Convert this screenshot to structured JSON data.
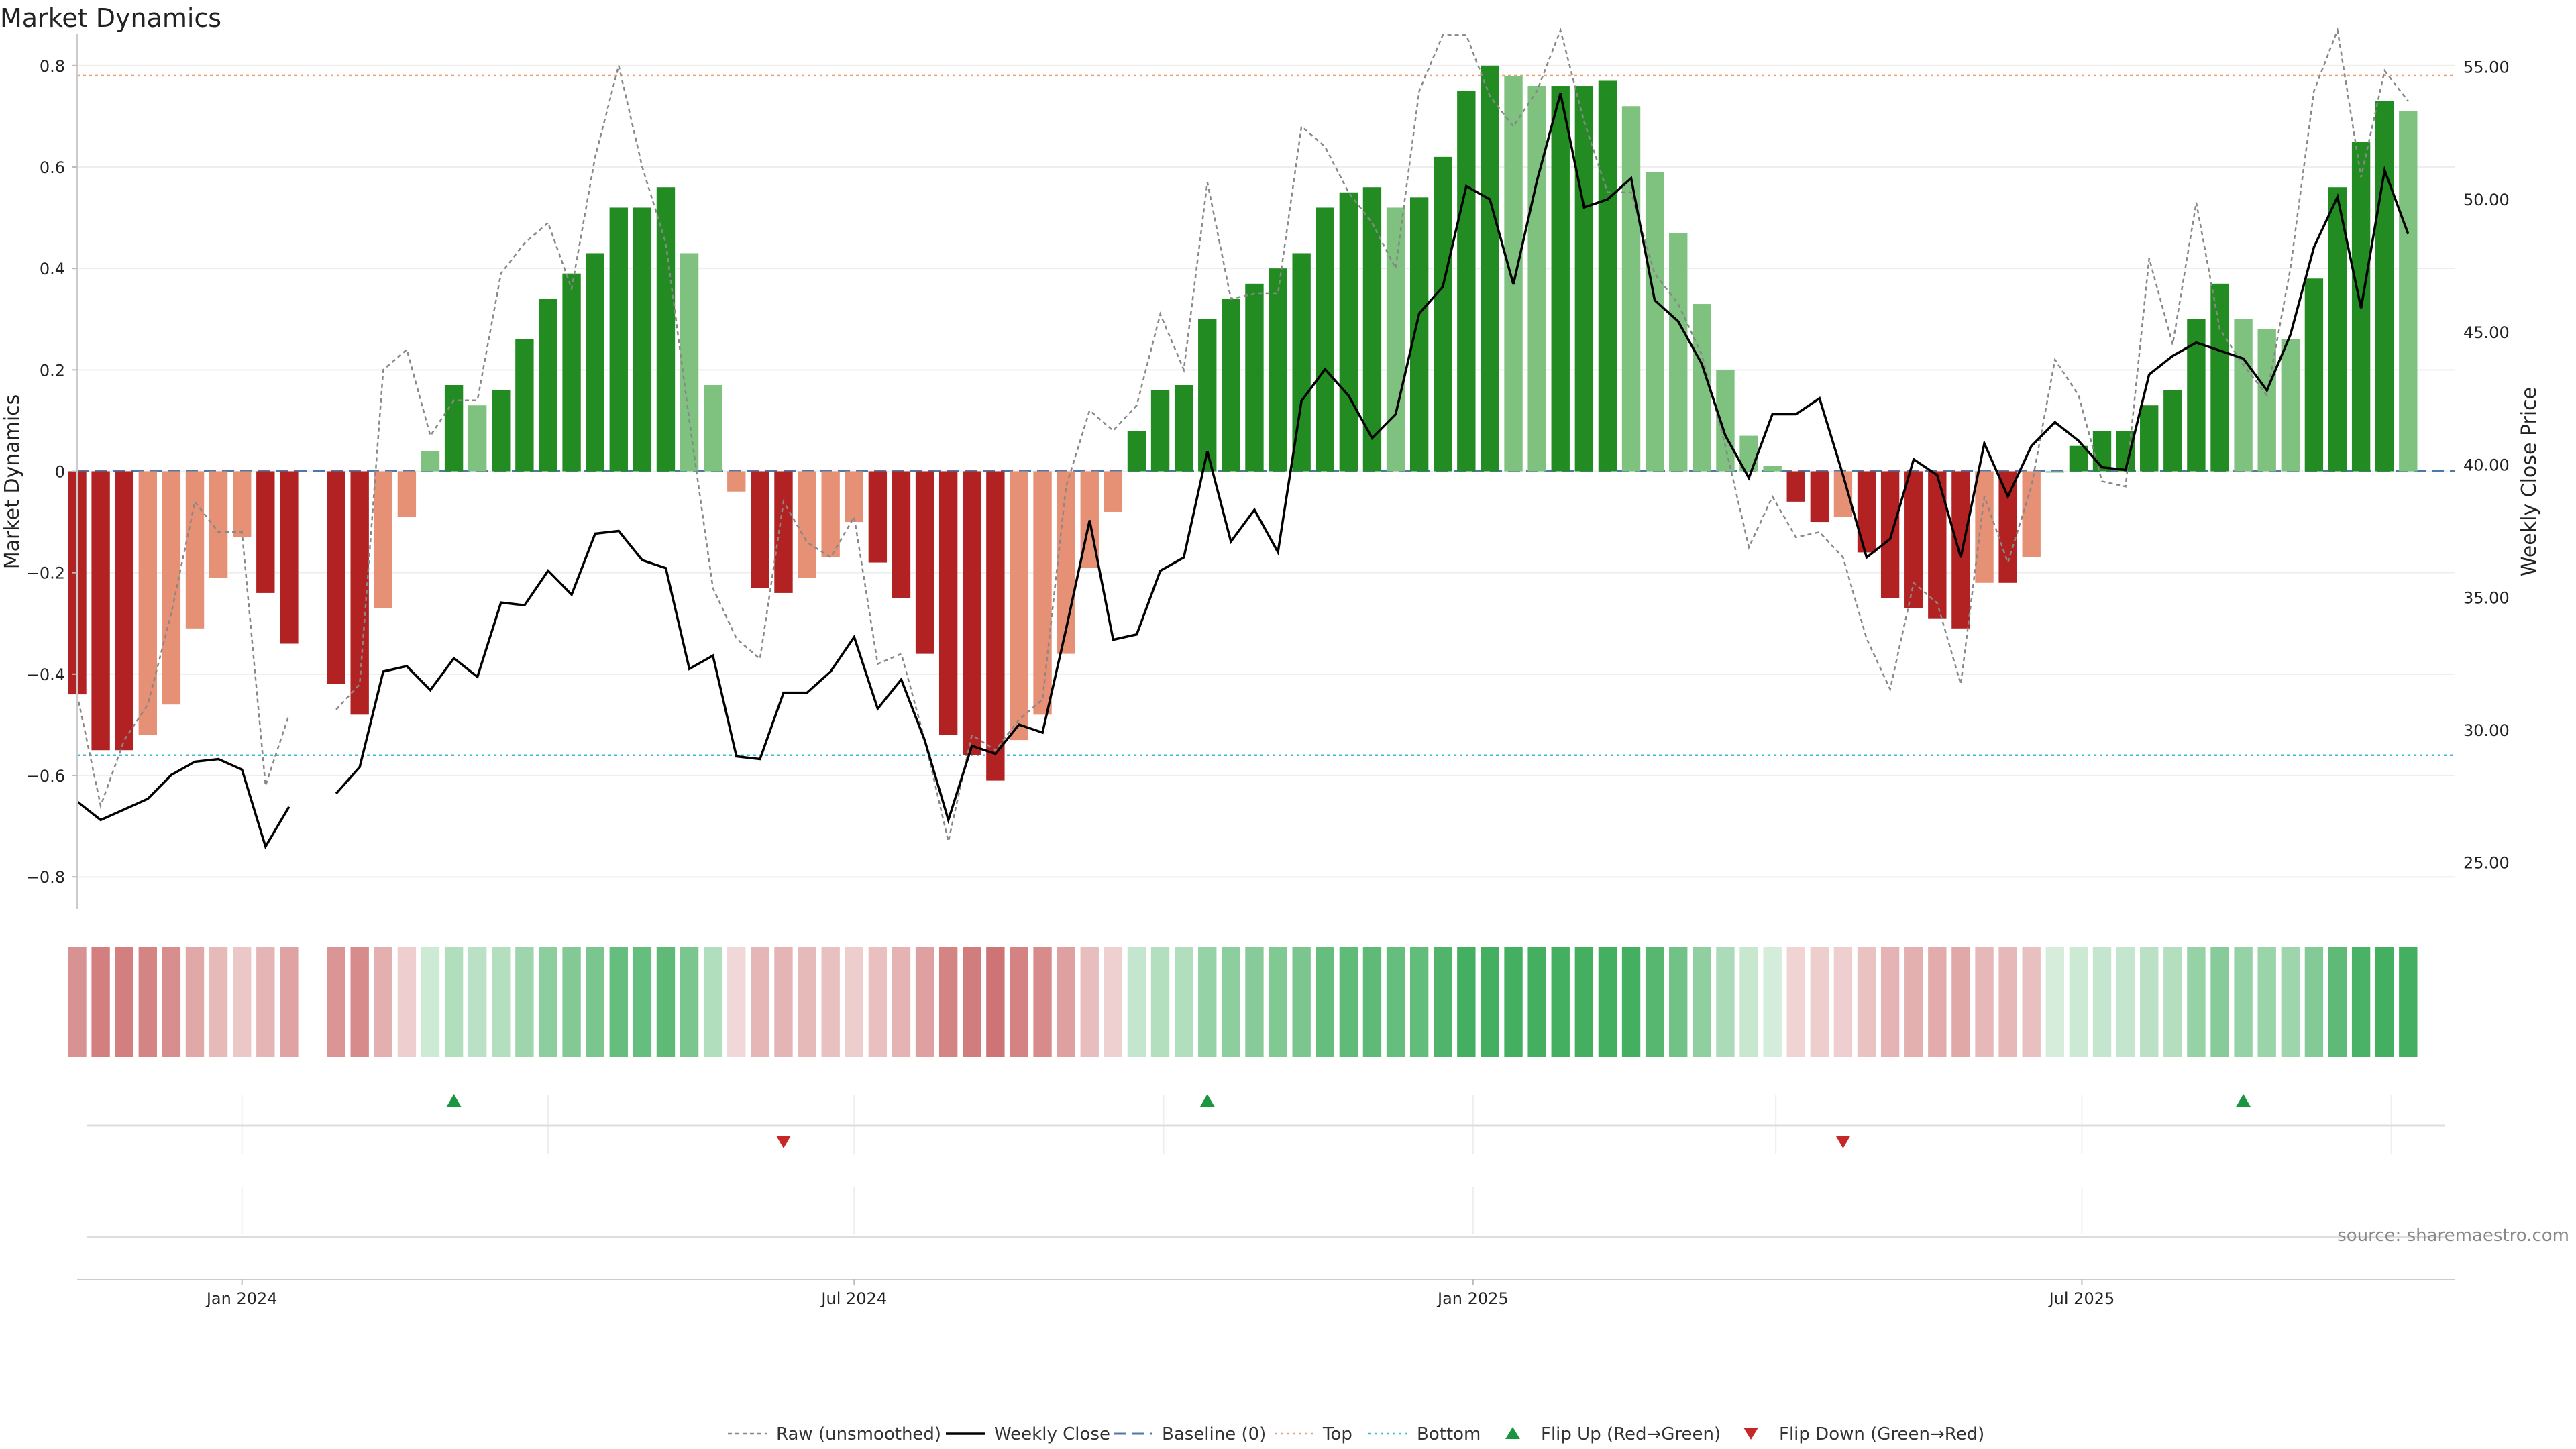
{
  "chart_data": {
    "type": "bar",
    "title": "Market Dynamics",
    "ylabel_left": "Market Dynamics",
    "ylabel_right": "Weekly Close Price",
    "ylim_left": [
      -0.85,
      0.85
    ],
    "ylim_right": [
      23.5,
      56.0
    ],
    "yticks_left": [
      -0.8,
      -0.6,
      -0.4,
      -0.2,
      0,
      0.2,
      0.4,
      0.6,
      0.8
    ],
    "yticks_left_labels": [
      "−0.8",
      "−0.6",
      "−0.4",
      "−0.2",
      "0",
      "0.2",
      "0.4",
      "0.6",
      "0.8"
    ],
    "yticks_right": [
      25,
      30,
      35,
      40,
      45,
      50,
      55
    ],
    "yticks_right_labels": [
      "25.00",
      "30.00",
      "35.00",
      "40.00",
      "45.00",
      "50.00",
      "55.00"
    ],
    "x_start": "2023-11-13",
    "x_end": "2025-10-20",
    "x_ticks": [
      {
        "date": "2024-01-01",
        "label": "Jan 2024"
      },
      {
        "date": "2024-07-01",
        "label": "Jul 2024"
      },
      {
        "date": "2025-01-01",
        "label": "Jan 2025"
      },
      {
        "date": "2025-07-01",
        "label": "Jul 2025"
      }
    ],
    "strip_grid_dates": [
      "2024-01-01",
      "2024-04-01",
      "2024-07-01",
      "2024-10-01",
      "2025-01-01",
      "2025-04-01",
      "2025-07-01",
      "2025-10-01"
    ],
    "top_line": 0.78,
    "bottom_line": -0.56,
    "baseline": 0,
    "weeks": [
      {
        "date": "2023-11-13",
        "value": -0.44,
        "raw": -0.44,
        "close": 27.3
      },
      {
        "date": "2023-11-20",
        "value": -0.55,
        "raw": -0.66,
        "close": 26.6
      },
      {
        "date": "2023-11-27",
        "value": -0.55,
        "raw": -0.53,
        "close": 27.0
      },
      {
        "date": "2023-12-04",
        "value": -0.52,
        "raw": -0.46,
        "close": 27.4
      },
      {
        "date": "2023-12-11",
        "value": -0.46,
        "raw": -0.28,
        "close": 28.3
      },
      {
        "date": "2023-12-18",
        "value": -0.31,
        "raw": -0.06,
        "close": 28.8
      },
      {
        "date": "2023-12-25",
        "value": -0.21,
        "raw": -0.12,
        "close": 28.9
      },
      {
        "date": "2024-01-01",
        "value": -0.13,
        "raw": -0.12,
        "close": 28.5
      },
      {
        "date": "2024-01-08",
        "value": -0.24,
        "raw": -0.62,
        "close": 25.6
      },
      {
        "date": "2024-01-15",
        "value": -0.34,
        "raw": -0.48,
        "close": 27.1
      },
      {
        "date": "2024-01-22",
        "value": null,
        "raw": null,
        "close": null
      },
      {
        "date": "2024-01-29",
        "value": -0.42,
        "raw": -0.47,
        "close": 27.6
      },
      {
        "date": "2024-02-05",
        "value": -0.48,
        "raw": -0.42,
        "close": 28.6
      },
      {
        "date": "2024-02-12",
        "value": -0.27,
        "raw": 0.2,
        "close": 32.2
      },
      {
        "date": "2024-02-19",
        "value": -0.09,
        "raw": 0.24,
        "close": 32.4
      },
      {
        "date": "2024-02-26",
        "value": 0.04,
        "raw": 0.07,
        "close": 31.5
      },
      {
        "date": "2024-03-04",
        "value": 0.17,
        "raw": 0.14,
        "close": 32.7
      },
      {
        "date": "2024-03-11",
        "value": 0.13,
        "raw": 0.14,
        "close": 32.0
      },
      {
        "date": "2024-03-18",
        "value": 0.16,
        "raw": 0.39,
        "close": 34.8
      },
      {
        "date": "2024-03-25",
        "value": 0.26,
        "raw": 0.45,
        "close": 34.7
      },
      {
        "date": "2024-04-01",
        "value": 0.34,
        "raw": 0.49,
        "close": 36.0
      },
      {
        "date": "2024-04-08",
        "value": 0.39,
        "raw": 0.36,
        "close": 35.1
      },
      {
        "date": "2024-04-15",
        "value": 0.43,
        "raw": 0.62,
        "close": 37.4
      },
      {
        "date": "2024-04-22",
        "value": 0.52,
        "raw": 0.8,
        "close": 37.5
      },
      {
        "date": "2024-04-29",
        "value": 0.52,
        "raw": 0.6,
        "close": 36.4
      },
      {
        "date": "2024-05-06",
        "value": 0.56,
        "raw": 0.45,
        "close": 36.1
      },
      {
        "date": "2024-05-13",
        "value": 0.43,
        "raw": 0.1,
        "close": 32.3
      },
      {
        "date": "2024-05-20",
        "value": 0.17,
        "raw": -0.23,
        "close": 32.8
      },
      {
        "date": "2024-05-27",
        "value": -0.04,
        "raw": -0.33,
        "close": 29.0
      },
      {
        "date": "2024-06-03",
        "value": -0.23,
        "raw": -0.37,
        "close": 28.9
      },
      {
        "date": "2024-06-10",
        "value": -0.24,
        "raw": -0.06,
        "close": 31.4
      },
      {
        "date": "2024-06-17",
        "value": -0.21,
        "raw": -0.14,
        "close": 31.4
      },
      {
        "date": "2024-06-24",
        "value": -0.17,
        "raw": -0.17,
        "close": 32.2
      },
      {
        "date": "2024-07-01",
        "value": -0.1,
        "raw": -0.09,
        "close": 33.5
      },
      {
        "date": "2024-07-08",
        "value": -0.18,
        "raw": -0.38,
        "close": 30.8
      },
      {
        "date": "2024-07-15",
        "value": -0.25,
        "raw": -0.36,
        "close": 31.9
      },
      {
        "date": "2024-07-22",
        "value": -0.36,
        "raw": -0.53,
        "close": 29.6
      },
      {
        "date": "2024-07-29",
        "value": -0.52,
        "raw": -0.73,
        "close": 26.6
      },
      {
        "date": "2024-08-05",
        "value": -0.56,
        "raw": -0.52,
        "close": 29.4
      },
      {
        "date": "2024-08-12",
        "value": -0.61,
        "raw": -0.55,
        "close": 29.1
      },
      {
        "date": "2024-08-19",
        "value": -0.53,
        "raw": -0.49,
        "close": 30.2
      },
      {
        "date": "2024-08-26",
        "value": -0.48,
        "raw": -0.45,
        "close": 29.9
      },
      {
        "date": "2024-09-02",
        "value": -0.36,
        "raw": -0.03,
        "close": 33.8
      },
      {
        "date": "2024-09-09",
        "value": -0.19,
        "raw": 0.12,
        "close": 37.9
      },
      {
        "date": "2024-09-16",
        "value": -0.08,
        "raw": 0.08,
        "close": 33.4
      },
      {
        "date": "2024-09-23",
        "value": 0.08,
        "raw": 0.13,
        "close": 33.6
      },
      {
        "date": "2024-09-30",
        "value": 0.16,
        "raw": 0.31,
        "close": 36.0
      },
      {
        "date": "2024-10-07",
        "value": 0.17,
        "raw": 0.2,
        "close": 36.5
      },
      {
        "date": "2024-10-14",
        "value": 0.3,
        "raw": 0.57,
        "close": 40.5
      },
      {
        "date": "2024-10-21",
        "value": 0.34,
        "raw": 0.34,
        "close": 37.1
      },
      {
        "date": "2024-10-28",
        "value": 0.37,
        "raw": 0.35,
        "close": 38.3
      },
      {
        "date": "2024-11-04",
        "value": 0.4,
        "raw": 0.35,
        "close": 36.7
      },
      {
        "date": "2024-11-11",
        "value": 0.43,
        "raw": 0.68,
        "close": 42.4
      },
      {
        "date": "2024-11-18",
        "value": 0.52,
        "raw": 0.64,
        "close": 43.6
      },
      {
        "date": "2024-11-25",
        "value": 0.55,
        "raw": 0.55,
        "close": 42.6
      },
      {
        "date": "2024-12-02",
        "value": 0.56,
        "raw": 0.49,
        "close": 41.0
      },
      {
        "date": "2024-12-09",
        "value": 0.52,
        "raw": 0.4,
        "close": 41.9
      },
      {
        "date": "2024-12-16",
        "value": 0.54,
        "raw": 0.75,
        "close": 45.7
      },
      {
        "date": "2024-12-23",
        "value": 0.62,
        "raw": 0.86,
        "close": 46.7
      },
      {
        "date": "2024-12-30",
        "value": 0.75,
        "raw": 0.86,
        "close": 50.5
      },
      {
        "date": "2025-01-06",
        "value": 0.8,
        "raw": 0.74,
        "close": 50.0
      },
      {
        "date": "2025-01-13",
        "value": 0.78,
        "raw": 0.68,
        "close": 46.8
      },
      {
        "date": "2025-01-20",
        "value": 0.76,
        "raw": 0.75,
        "close": 50.7
      },
      {
        "date": "2025-01-27",
        "value": 0.76,
        "raw": 0.87,
        "close": 54.0
      },
      {
        "date": "2025-02-03",
        "value": 0.76,
        "raw": 0.69,
        "close": 49.7
      },
      {
        "date": "2025-02-10",
        "value": 0.77,
        "raw": 0.55,
        "close": 50.0
      },
      {
        "date": "2025-02-17",
        "value": 0.72,
        "raw": 0.55,
        "close": 50.8
      },
      {
        "date": "2025-02-24",
        "value": 0.59,
        "raw": 0.39,
        "close": 46.2
      },
      {
        "date": "2025-03-03",
        "value": 0.47,
        "raw": 0.33,
        "close": 45.4
      },
      {
        "date": "2025-03-10",
        "value": 0.33,
        "raw": 0.23,
        "close": 43.8
      },
      {
        "date": "2025-03-17",
        "value": 0.2,
        "raw": 0.05,
        "close": 41.1
      },
      {
        "date": "2025-03-24",
        "value": 0.07,
        "raw": -0.15,
        "close": 39.5
      },
      {
        "date": "2025-03-31",
        "value": 0.01,
        "raw": -0.05,
        "close": 41.9
      },
      {
        "date": "2025-04-07",
        "value": -0.06,
        "raw": -0.13,
        "close": 41.9
      },
      {
        "date": "2025-04-14",
        "value": -0.1,
        "raw": -0.12,
        "close": 42.5
      },
      {
        "date": "2025-04-21",
        "value": -0.09,
        "raw": -0.17,
        "close": 39.6
      },
      {
        "date": "2025-04-28",
        "value": -0.16,
        "raw": -0.33,
        "close": 36.5
      },
      {
        "date": "2025-05-05",
        "value": -0.25,
        "raw": -0.43,
        "close": 37.2
      },
      {
        "date": "2025-05-12",
        "value": -0.27,
        "raw": -0.22,
        "close": 40.2
      },
      {
        "date": "2025-05-19",
        "value": -0.29,
        "raw": -0.26,
        "close": 39.6
      },
      {
        "date": "2025-05-26",
        "value": -0.31,
        "raw": -0.42,
        "close": 36.5
      },
      {
        "date": "2025-06-02",
        "value": -0.22,
        "raw": -0.05,
        "close": 40.8
      },
      {
        "date": "2025-06-09",
        "value": -0.22,
        "raw": -0.18,
        "close": 38.8
      },
      {
        "date": "2025-06-16",
        "value": -0.17,
        "raw": -0.03,
        "close": 40.7
      },
      {
        "date": "2025-06-23",
        "value": 0.0,
        "raw": 0.22,
        "close": 41.6
      },
      {
        "date": "2025-06-30",
        "value": 0.05,
        "raw": 0.15,
        "close": 40.9
      },
      {
        "date": "2025-07-07",
        "value": 0.08,
        "raw": -0.02,
        "close": 39.9
      },
      {
        "date": "2025-07-14",
        "value": 0.08,
        "raw": -0.03,
        "close": 39.8
      },
      {
        "date": "2025-07-21",
        "value": 0.13,
        "raw": 0.42,
        "close": 43.4
      },
      {
        "date": "2025-07-28",
        "value": 0.16,
        "raw": 0.25,
        "close": 44.1
      },
      {
        "date": "2025-08-04",
        "value": 0.3,
        "raw": 0.53,
        "close": 44.6
      },
      {
        "date": "2025-08-11",
        "value": 0.37,
        "raw": 0.28,
        "close": 44.3
      },
      {
        "date": "2025-08-18",
        "value": 0.3,
        "raw": 0.21,
        "close": 44.0
      },
      {
        "date": "2025-08-25",
        "value": 0.28,
        "raw": 0.15,
        "close": 42.8
      },
      {
        "date": "2025-09-01",
        "value": 0.26,
        "raw": 0.4,
        "close": 44.9
      },
      {
        "date": "2025-09-08",
        "value": 0.38,
        "raw": 0.75,
        "close": 48.2
      },
      {
        "date": "2025-09-15",
        "value": 0.56,
        "raw": 0.87,
        "close": 50.1
      },
      {
        "date": "2025-09-22",
        "value": 0.65,
        "raw": 0.58,
        "close": 45.9
      },
      {
        "date": "2025-09-29",
        "value": 0.73,
        "raw": 0.79,
        "close": 51.1
      },
      {
        "date": "2025-10-06",
        "value": 0.71,
        "raw": 0.73,
        "close": 48.7
      }
    ],
    "flips": [
      {
        "date": "2024-03-04",
        "direction": "up"
      },
      {
        "date": "2024-06-10",
        "direction": "down"
      },
      {
        "date": "2024-10-14",
        "direction": "up"
      },
      {
        "date": "2025-04-21",
        "direction": "down"
      },
      {
        "date": "2025-08-18",
        "direction": "up"
      }
    ],
    "colors": {
      "strong_red": "#b22222",
      "weak_red": "#e69176",
      "strong_green": "#228b22",
      "weak_green": "#7fc17f",
      "raw_line": "#888888",
      "close_line": "#000000",
      "baseline": "#4e79a7",
      "top": "#e8a27a",
      "bottom": "#3fbcd0",
      "flip_up": "#1a9641",
      "flip_down": "#c62828"
    },
    "legend": [
      {
        "key": "raw",
        "label": "Raw (unsmoothed)"
      },
      {
        "key": "close",
        "label": "Weekly Close"
      },
      {
        "key": "baseline",
        "label": "Baseline (0)"
      },
      {
        "key": "top",
        "label": "Top"
      },
      {
        "key": "bottom",
        "label": "Bottom"
      },
      {
        "key": "flip_up",
        "label": "Flip Up (Red→Green)"
      },
      {
        "key": "flip_down",
        "label": "Flip Down (Green→Red)"
      }
    ],
    "source": "source: sharemaestro.com"
  }
}
